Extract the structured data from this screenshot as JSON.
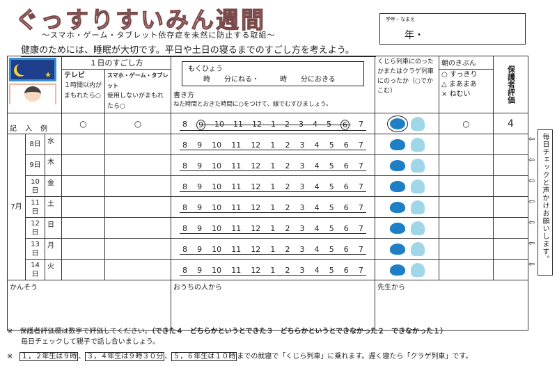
{
  "title": "ぐっすりすいみん週間",
  "subtitle": "～スマホ・ゲーム・タブレット依存症を未然に防止する取組～",
  "intro": "健康のためには、睡眠が大切です。平日や土日の寝るまでのすごし方を考えよう。",
  "name_box": {
    "label": "学年・なまえ",
    "value": "年・"
  },
  "header": {
    "day_group": "１日のすごし方",
    "tv_title": "テレビ",
    "tv_desc": "１時間以内がまもれたら○",
    "phone_title": "スマホ・ゲーム・タブレット",
    "phone_desc": "使用しないがまもれたら○",
    "goal_label": "もくひょう",
    "goal_text": "時　　分にねる・　　　時　　分におきる",
    "howto_title": "書き方",
    "howto_text": "ねた時間とおきた時間に○をつけて、線でむすびましょう。",
    "train": "くじら列車にのったかまたはクラゲ列車にのったか（○でかこむ）",
    "mood_title": "朝のきぶん",
    "mood_options": [
      "○ すっきり",
      "△ まあまあ",
      "× ねむい"
    ],
    "parent": "保護者評価"
  },
  "example": {
    "label": "記　入　例",
    "tv": "○",
    "phone": "○",
    "mood": "○",
    "parent": "4"
  },
  "hours": [
    "8",
    "9",
    "10",
    "11",
    "12",
    "1",
    "2",
    "3",
    "4",
    "5",
    "6",
    "7"
  ],
  "month": "7月",
  "days": [
    {
      "date": "8日",
      "weekday": "水"
    },
    {
      "date": "9日",
      "weekday": "木"
    },
    {
      "date": "10日",
      "weekday": "金"
    },
    {
      "date": "11日",
      "weekday": "土"
    },
    {
      "date": "12日",
      "weekday": "日"
    },
    {
      "date": "13日",
      "weekday": "月"
    },
    {
      "date": "14日",
      "weekday": "火"
    }
  ],
  "comments": {
    "self": "かんそう",
    "home": "おうちの人から",
    "teacher": "先生から"
  },
  "side_note": "毎日チェックと声かけお願いします。",
  "footer": {
    "note1": "※　保護者評価欄は数字で評価してください。",
    "note1_bold": "（できた４　どちらかというとできた３　どちらかというとできなかった２　できなかった１）",
    "note2": "毎日チェックして親子で話し合いましょう。",
    "note3_prefix": "※　",
    "g12": "１，２年生は９時",
    "g34": "３，４年生は９時３０分",
    "g56": "５，６年生は１０時",
    "note3_rest": "までの就寝で「くじら列車」に乗れます。遅く寝たら「クラゲ列車」です。"
  }
}
